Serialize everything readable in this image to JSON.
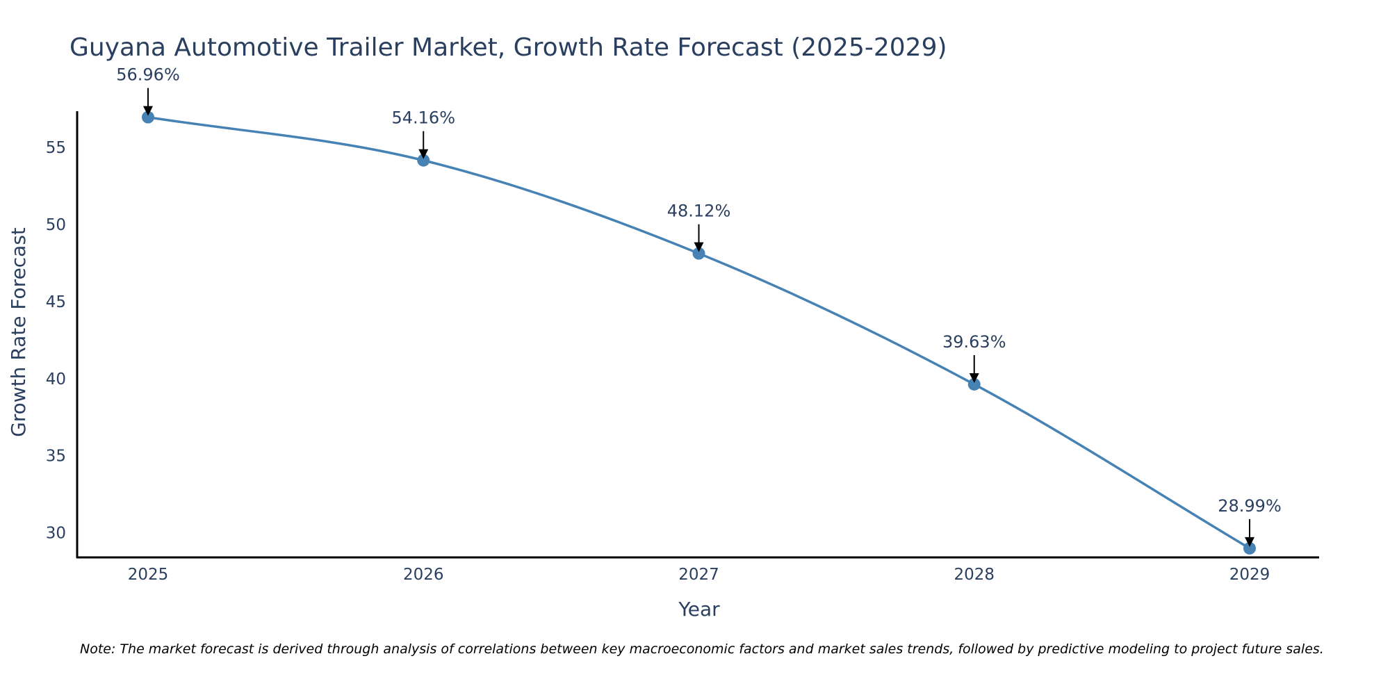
{
  "colors": {
    "line": "#4682b4",
    "marker": "#4682b4",
    "axis": "#000000",
    "text": "#2a3f5f",
    "arrow": "#000000"
  },
  "chart_data": {
    "type": "line",
    "title": "Guyana Automotive Trailer Market, Growth Rate Forecast (2025-2029)",
    "xlabel": "Year",
    "ylabel": "Growth Rate Forecast",
    "x": [
      "2025",
      "2026",
      "2027",
      "2028",
      "2029"
    ],
    "series": [
      {
        "name": "Growth Rate Forecast",
        "values": [
          56.96,
          54.16,
          48.12,
          39.63,
          28.99
        ]
      }
    ],
    "data_labels": [
      "56.96%",
      "54.16%",
      "48.12%",
      "39.63%",
      "28.99%"
    ],
    "y_ticks": [
      30,
      35,
      40,
      45,
      50,
      55
    ],
    "y_tick_labels": [
      "30",
      "35",
      "40",
      "45",
      "50",
      "55"
    ],
    "ylim": [
      28.4,
      57.35
    ],
    "grid": false,
    "note": "Note: The market forecast is derived through analysis of correlations between key macroeconomic factors and market sales trends, followed by predictive modeling to project future sales."
  }
}
